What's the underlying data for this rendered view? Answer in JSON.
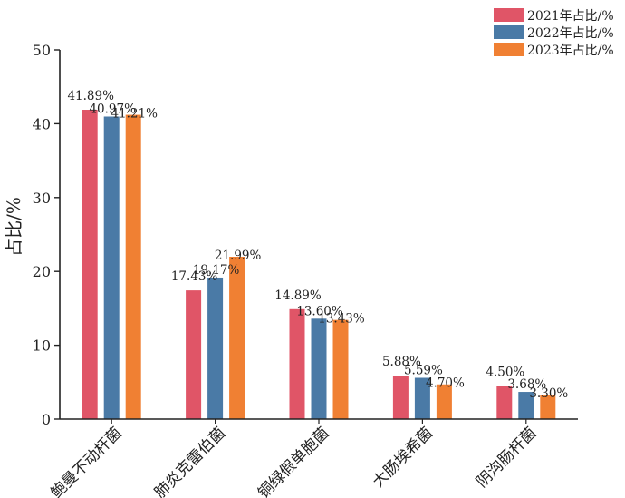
{
  "chart_data": {
    "type": "bar",
    "title": "",
    "xlabel": "",
    "ylabel": "占比/%",
    "ylim": [
      0,
      50
    ],
    "yticks": [
      0,
      10,
      20,
      30,
      40,
      50
    ],
    "grid": false,
    "legend_position": "top-right",
    "categories": [
      "鲍曼不动杆菌",
      "肺炎克雷伯菌",
      "铜绿假单胞菌",
      "大肠埃希菌",
      "阴沟肠杆菌"
    ],
    "series": [
      {
        "name": "2021年占比/%",
        "color": "#e05567",
        "values": [
          41.89,
          17.43,
          14.89,
          5.88,
          4.5
        ],
        "labels": [
          "41.89%",
          "17.43%",
          "14.89%",
          "5.88%",
          "4.50%"
        ]
      },
      {
        "name": "2022年占比/%",
        "color": "#4a7aa6",
        "values": [
          40.97,
          19.17,
          13.6,
          5.59,
          3.68
        ],
        "labels": [
          "40.97%",
          "19.17%",
          "13.60%",
          "5.59%",
          "3.68%"
        ]
      },
      {
        "name": "2023年占比/%",
        "color": "#f08033",
        "values": [
          41.21,
          21.99,
          13.43,
          4.7,
          3.3
        ],
        "labels": [
          "41.21%",
          "21.99%",
          "13.43%",
          "4.70%",
          "3.30%"
        ]
      }
    ]
  }
}
